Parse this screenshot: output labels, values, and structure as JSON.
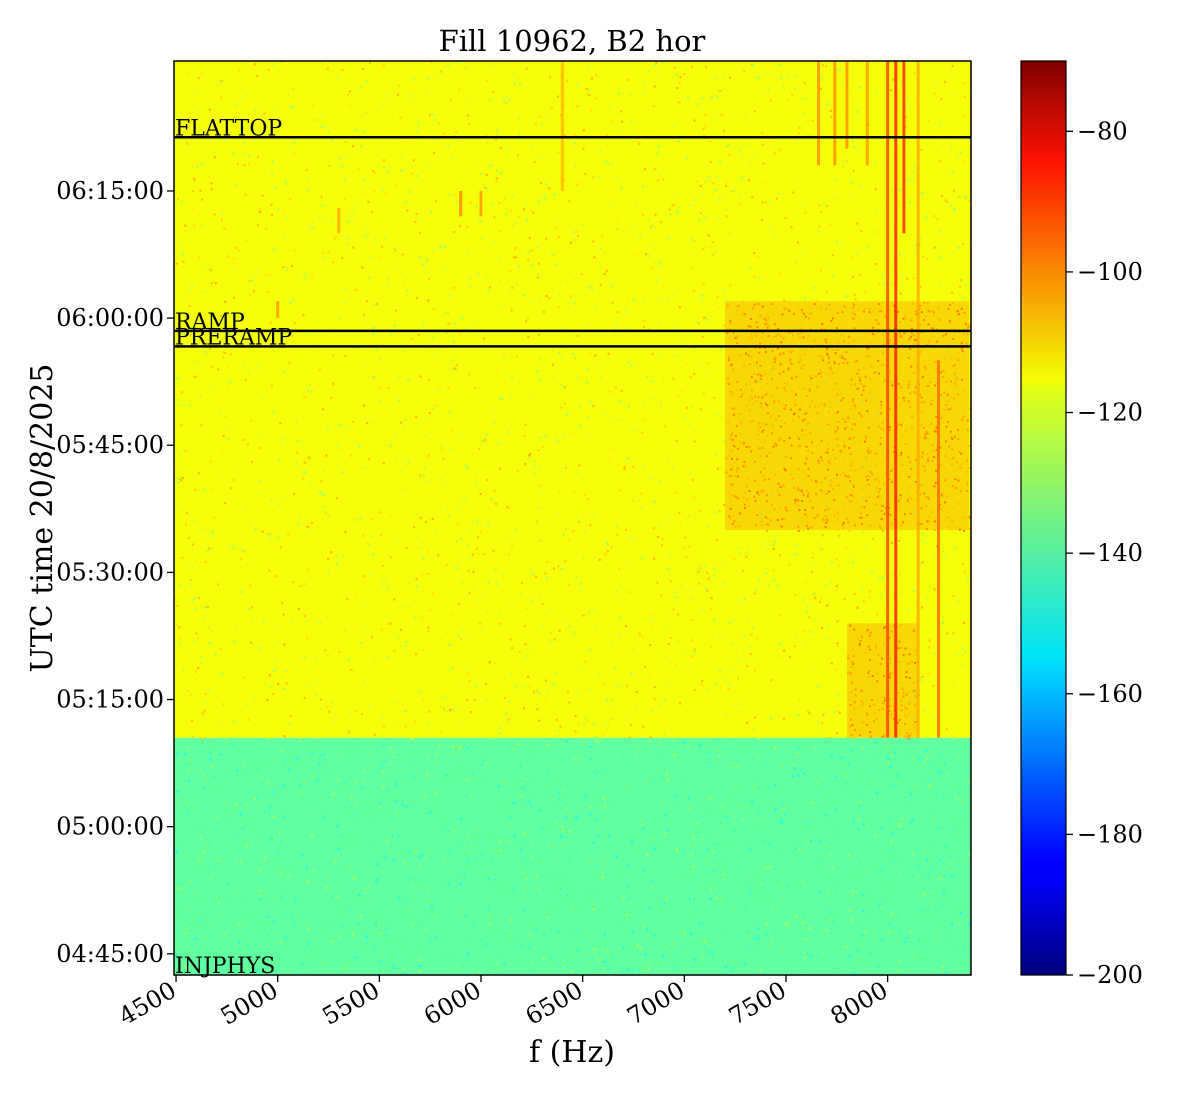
{
  "chart_data": {
    "type": "heatmap",
    "title": "Fill 10962, B2 hor",
    "xlabel": "f (Hz)",
    "ylabel": "UTC time 20/8/2025",
    "xlim": [
      4490,
      8410
    ],
    "x_ticks": [
      4500,
      5000,
      5500,
      6000,
      6500,
      7000,
      7500,
      8000
    ],
    "x_tick_labels": [
      "4500",
      "5000",
      "5500",
      "6000",
      "6500",
      "7000",
      "7500",
      "8000"
    ],
    "ylim": [
      "04:42:30",
      "06:30:20"
    ],
    "y_ticks": [
      "04:45:00",
      "05:00:00",
      "05:15:00",
      "05:30:00",
      "05:45:00",
      "06:00:00",
      "06:15:00"
    ],
    "y_tick_labels": [
      "04:45:00",
      "05:00:00",
      "05:15:00",
      "05:30:00",
      "05:45:00",
      "06:00:00",
      "06:15:00"
    ],
    "colorbar": {
      "colormap": "jet",
      "range": [
        -200,
        -70
      ],
      "ticks": [
        -200,
        -180,
        -160,
        -140,
        -120,
        -100,
        -80
      ],
      "tick_labels": [
        "−200",
        "−180",
        "−160",
        "−140",
        "−120",
        "−100",
        "−80"
      ]
    },
    "regions": [
      {
        "from": "04:42:30",
        "to": "05:10:30",
        "level": -139
      },
      {
        "from": "05:10:30",
        "to": "06:30:20",
        "level": -120
      }
    ],
    "hotspots": [
      {
        "f_from": 7200,
        "f_to": 8400,
        "t_from": "05:35:00",
        "t_to": "06:02:00",
        "level": -108
      },
      {
        "f_from": 7800,
        "f_to": 8150,
        "t_from": "05:10:30",
        "t_to": "05:24:00",
        "level": -108
      }
    ],
    "spectral_lines": [
      {
        "f": 8000,
        "t_from": "05:10:30",
        "t_to": "06:30:20",
        "level": -95
      },
      {
        "f": 8040,
        "t_from": "05:10:30",
        "t_to": "06:30:20",
        "level": -90
      },
      {
        "f": 8080,
        "t_from": "06:10:00",
        "t_to": "06:30:20",
        "level": -92
      },
      {
        "f": 8250,
        "t_from": "05:10:30",
        "t_to": "05:55:00",
        "level": -100
      },
      {
        "f": 8150,
        "t_from": "05:10:30",
        "t_to": "06:30:20",
        "level": -108
      },
      {
        "f": 7660,
        "t_from": "06:18:00",
        "t_to": "06:30:20",
        "level": -105
      },
      {
        "f": 7740,
        "t_from": "06:18:00",
        "t_to": "06:30:20",
        "level": -105
      },
      {
        "f": 7800,
        "t_from": "06:20:00",
        "t_to": "06:30:20",
        "level": -105
      },
      {
        "f": 7900,
        "t_from": "06:18:00",
        "t_to": "06:30:20",
        "level": -106
      },
      {
        "f": 6400,
        "t_from": "06:15:00",
        "t_to": "06:30:20",
        "level": -110
      },
      {
        "f": 5900,
        "t_from": "06:12:00",
        "t_to": "06:15:00",
        "level": -104
      },
      {
        "f": 6000,
        "t_from": "06:12:00",
        "t_to": "06:15:00",
        "level": -106
      },
      {
        "f": 5300,
        "t_from": "06:10:00",
        "t_to": "06:13:00",
        "level": -108
      },
      {
        "f": 5000,
        "t_from": "06:00:00",
        "t_to": "06:02:00",
        "level": -106
      }
    ],
    "annotations": [
      {
        "label": "FLATTOP",
        "time": "06:21:20"
      },
      {
        "label": "RAMP",
        "time": "05:58:30"
      },
      {
        "label": "PRERAMP",
        "time": "05:56:40"
      },
      {
        "label": "INJPHYS",
        "time": "04:42:30"
      }
    ]
  }
}
